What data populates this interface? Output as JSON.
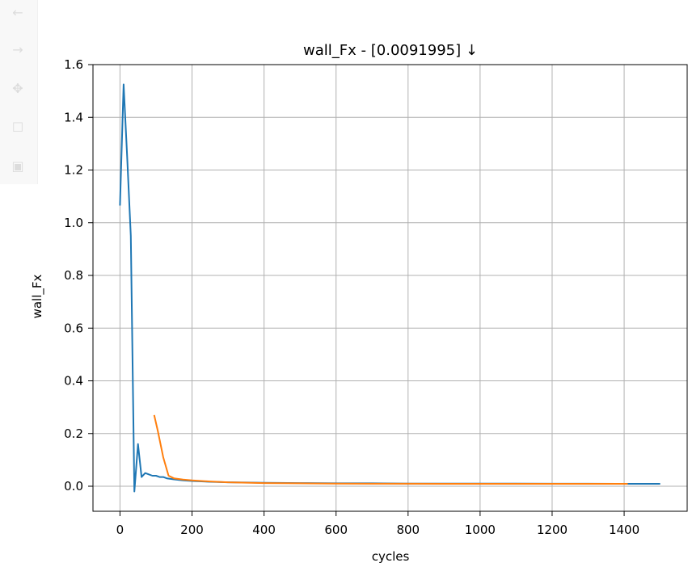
{
  "toolbar": {
    "buttons": [
      {
        "icon": "back-arrow-icon",
        "glyph": "←"
      },
      {
        "icon": "forward-arrow-icon",
        "glyph": "→"
      },
      {
        "icon": "pan-move-icon",
        "glyph": "✥"
      },
      {
        "icon": "zoom-rect-icon",
        "glyph": "☐"
      },
      {
        "icon": "save-icon",
        "glyph": "▣"
      }
    ]
  },
  "chart_data": {
    "type": "line",
    "title": "wall_Fx - [0.0091995]  ↓",
    "xlabel": "cycles",
    "ylabel": "wall_Fx",
    "xlim": [
      -75,
      1575
    ],
    "ylim": [
      -0.095,
      1.6
    ],
    "xticks": [
      0,
      200,
      400,
      600,
      800,
      1000,
      1200,
      1400
    ],
    "xtick_labels": [
      "0",
      "200",
      "400",
      "600",
      "800",
      "1000",
      "1200",
      "1400"
    ],
    "yticks": [
      0.0,
      0.2,
      0.4,
      0.6,
      0.8,
      1.0,
      1.2,
      1.4,
      1.6
    ],
    "ytick_labels": [
      "0.0",
      "0.2",
      "0.4",
      "0.6",
      "0.8",
      "1.0",
      "1.2",
      "1.4",
      "1.6"
    ],
    "grid": true,
    "series": [
      {
        "color": "#1f77b4",
        "x": [
          0,
          10,
          20,
          30,
          40,
          50,
          60,
          70,
          80,
          90,
          100,
          110,
          120,
          130,
          140,
          150,
          175,
          200,
          250,
          300,
          350,
          400,
          500,
          600,
          700,
          800,
          900,
          1000,
          1100,
          1200,
          1300,
          1400,
          1500
        ],
        "y": [
          1.065,
          1.525,
          1.25,
          0.95,
          -0.02,
          0.16,
          0.035,
          0.05,
          0.045,
          0.04,
          0.04,
          0.035,
          0.035,
          0.03,
          0.028,
          0.026,
          0.022,
          0.02,
          0.017,
          0.015,
          0.014,
          0.013,
          0.012,
          0.011,
          0.011,
          0.01,
          0.01,
          0.01,
          0.01,
          0.0095,
          0.0095,
          0.0092,
          0.0092
        ]
      },
      {
        "color": "#ff7f0e",
        "x": [
          95,
          105,
          120,
          135,
          150,
          175,
          200,
          250,
          300,
          400,
          500,
          600,
          700,
          800,
          900,
          1000,
          1100,
          1200,
          1300,
          1410
        ],
        "y": [
          0.27,
          0.21,
          0.11,
          0.04,
          0.03,
          0.025,
          0.022,
          0.018,
          0.015,
          0.012,
          0.011,
          0.01,
          0.0095,
          0.0095,
          0.0093,
          0.0093,
          0.0092,
          0.0092,
          0.0092,
          0.0092
        ]
      }
    ]
  }
}
